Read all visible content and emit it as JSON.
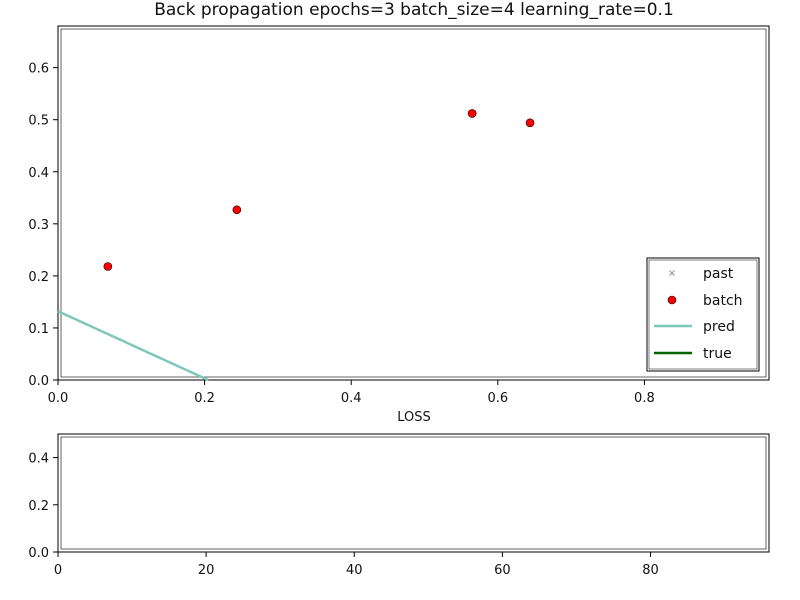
{
  "colors": {
    "batch": "#ff0000",
    "past": "#7f7f7f",
    "pred": "#7fc7bb",
    "true": "#006400",
    "axes": "#000000"
  },
  "chart_data": [
    {
      "type": "scatter",
      "title": "Back propagation epochs=3 batch_size=4 learning_rate=0.1",
      "xlabel": "LOSS",
      "ylabel": "",
      "xlim": [
        0,
        0.97
      ],
      "ylim": [
        0,
        0.68
      ],
      "xticks": [
        "0.0",
        "0.2",
        "0.4",
        "0.6",
        "0.8"
      ],
      "yticks": [
        "0.0",
        "0.1",
        "0.2",
        "0.3",
        "0.4",
        "0.5",
        "0.6"
      ],
      "grid": false,
      "legend_position": "lower-right",
      "legend": [
        "past",
        "batch",
        "pred",
        "true"
      ],
      "series": [
        {
          "name": "past",
          "kind": "points",
          "x": [],
          "y": []
        },
        {
          "name": "batch",
          "kind": "points",
          "x": [
            0.068,
            0.244,
            0.565,
            0.644
          ],
          "y": [
            0.218,
            0.327,
            0.512,
            0.494
          ]
        },
        {
          "name": "pred",
          "kind": "line",
          "x": [
            0.0,
            0.205
          ],
          "y": [
            0.132,
            0.0
          ]
        },
        {
          "name": "true",
          "kind": "line",
          "x": [],
          "y": []
        }
      ]
    },
    {
      "type": "line",
      "title": "",
      "xlabel": "",
      "ylabel": "",
      "xlim": [
        0,
        96
      ],
      "ylim": [
        0,
        0.5
      ],
      "xticks": [
        "0",
        "20",
        "40",
        "60",
        "80"
      ],
      "yticks": [
        "0.0",
        "0.2",
        "0.4"
      ],
      "grid": false,
      "series": []
    }
  ]
}
